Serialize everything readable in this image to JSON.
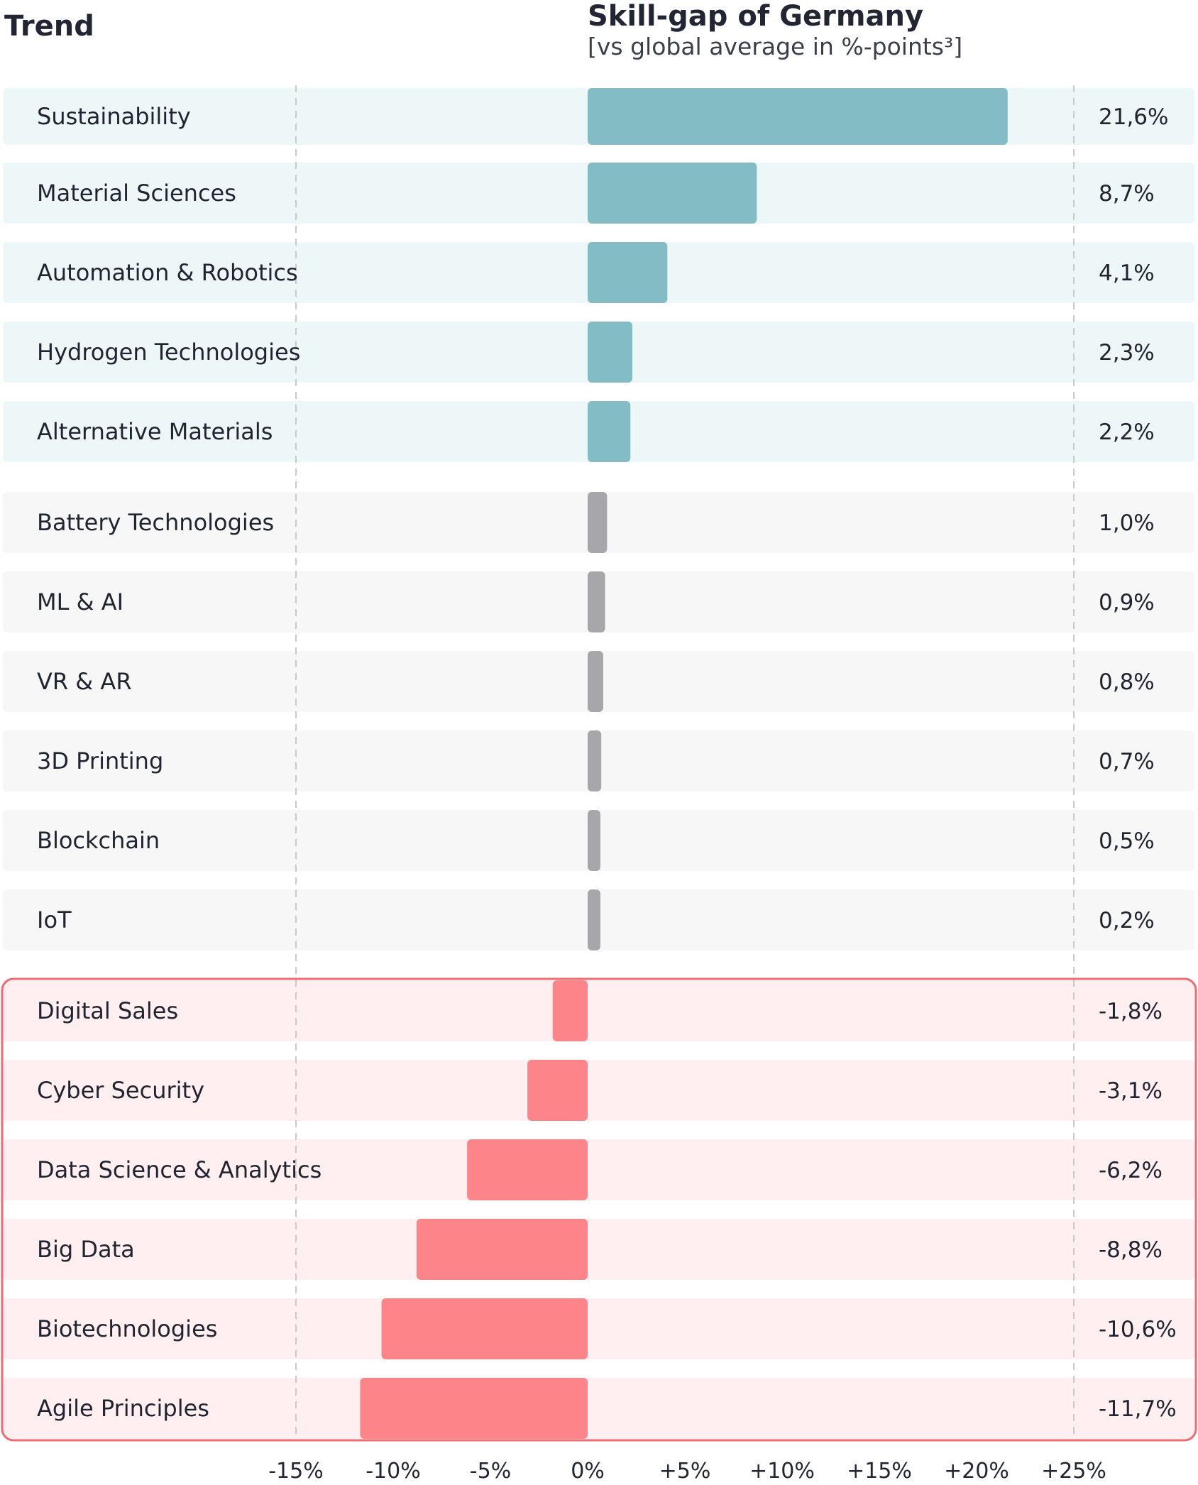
{
  "header": {
    "trend_label": "Trend",
    "title": "Skill-gap of Germany",
    "subtitle": "[vs global average in %-points³]"
  },
  "chart_data": {
    "type": "bar",
    "orientation": "horizontal",
    "title": "Skill-gap of Germany",
    "subtitle": "[vs global average in %-points³]",
    "xlabel": "",
    "ylabel": "Trend",
    "xlim": [
      -15,
      25
    ],
    "tick_values": [
      -15,
      -10,
      -5,
      0,
      5,
      10,
      15,
      20,
      25
    ],
    "tick_labels": [
      "-15%",
      "-10%",
      "-5%",
      "0%",
      "+5%",
      "+10%",
      "+15%",
      "+20%",
      "+25%"
    ],
    "grid": "dashed vertical lines at -15% and +25%",
    "highlight_box": "red outline around negative group",
    "groups": [
      {
        "name": "positive-high",
        "bar_color": "#84bcc6",
        "row_bg": "#eef7f8",
        "categories": [
          "Sustainability",
          "Material Sciences",
          "Automation & Robotics",
          "Hydrogen Technologies",
          "Alternative Materials"
        ],
        "values": [
          21.6,
          8.7,
          4.1,
          2.3,
          2.2
        ],
        "value_labels": [
          "21,6%",
          "8,7%",
          "4,1%",
          "2,3%",
          "2,2%"
        ]
      },
      {
        "name": "positive-low",
        "bar_color": "#a7a7ab",
        "row_bg": "#f7f7f7",
        "categories": [
          "Battery Technologies",
          "ML & AI",
          "VR & AR",
          "3D Printing",
          "Blockchain",
          "IoT"
        ],
        "values": [
          1.0,
          0.9,
          0.8,
          0.7,
          0.5,
          0.2
        ],
        "value_labels": [
          "1,0%",
          "0,9%",
          "0,8%",
          "0,7%",
          "0,5%",
          "0,2%"
        ]
      },
      {
        "name": "negative",
        "bar_color": "#fd8589",
        "row_bg": "#ffeff0",
        "categories": [
          "Digital Sales",
          "Cyber Security",
          "Data Science & Analytics",
          "Big Data",
          "Biotechnologies",
          "Agile Principles"
        ],
        "values": [
          -1.8,
          -3.1,
          -6.2,
          -8.8,
          -10.6,
          -11.7
        ],
        "value_labels": [
          "-1,8%",
          "-3,1%",
          "-6,2%",
          "-8,8%",
          "-10,6%",
          "-11,7%"
        ]
      }
    ],
    "colors": {
      "dashed_line": "#c9c9c9",
      "highlight_border": "#ef6b6f"
    }
  }
}
